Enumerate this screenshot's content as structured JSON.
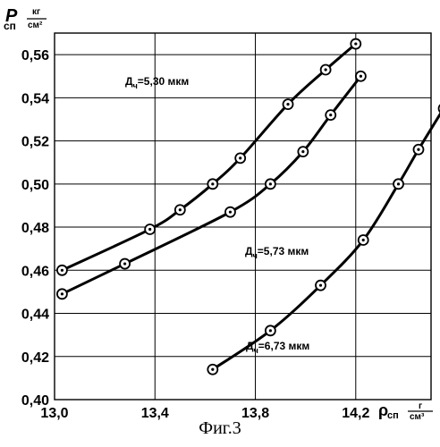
{
  "chart_data": {
    "type": "line",
    "x": {
      "ticks": [
        13.0,
        13.4,
        13.8,
        14.2
      ],
      "tick_labels": [
        "13,0",
        "13,4",
        "13,8",
        "14,2"
      ],
      "range": [
        13.0,
        14.5
      ]
    },
    "y": {
      "ticks": [
        0.4,
        0.42,
        0.44,
        0.46,
        0.48,
        0.5,
        0.52,
        0.54,
        0.56
      ],
      "tick_labels": [
        "0,40",
        "0,42",
        "0,44",
        "0,46",
        "0,48",
        "0,50",
        "0,52",
        "0,54",
        "0,56"
      ],
      "range": [
        0.4,
        0.57
      ]
    },
    "y_axis_title": {
      "symbol": "P",
      "sub": "сп",
      "unit_num": "кг",
      "unit_den": "см²"
    },
    "x_axis_title": {
      "symbol": "ρ",
      "sub": "сп",
      "unit_num": "г",
      "unit_den": "см³"
    },
    "series": [
      {
        "name": "Д",
        "name_sub": "ч",
        "name_rest": "=5,30 мкм",
        "points": [
          [
            13.03,
            0.46
          ],
          [
            13.38,
            0.479
          ],
          [
            13.5,
            0.488
          ],
          [
            13.63,
            0.5
          ],
          [
            13.74,
            0.512
          ],
          [
            13.93,
            0.537
          ],
          [
            14.08,
            0.553
          ],
          [
            14.2,
            0.565
          ]
        ]
      },
      {
        "name": "Д",
        "name_sub": "ч",
        "name_rest": "=5,73 мкм",
        "points": [
          [
            13.03,
            0.449
          ],
          [
            13.28,
            0.463
          ],
          [
            13.7,
            0.487
          ],
          [
            13.86,
            0.5
          ],
          [
            13.99,
            0.515
          ],
          [
            14.1,
            0.532
          ],
          [
            14.22,
            0.55
          ]
        ]
      },
      {
        "name": "Д",
        "name_sub": "ч",
        "name_rest": "=6,73 мкм",
        "points": [
          [
            13.63,
            0.414
          ],
          [
            13.86,
            0.432
          ],
          [
            14.06,
            0.453
          ],
          [
            14.23,
            0.474
          ],
          [
            14.37,
            0.5
          ],
          [
            14.45,
            0.516
          ],
          [
            14.55,
            0.535
          ]
        ]
      }
    ]
  },
  "caption": "Фиг.3"
}
